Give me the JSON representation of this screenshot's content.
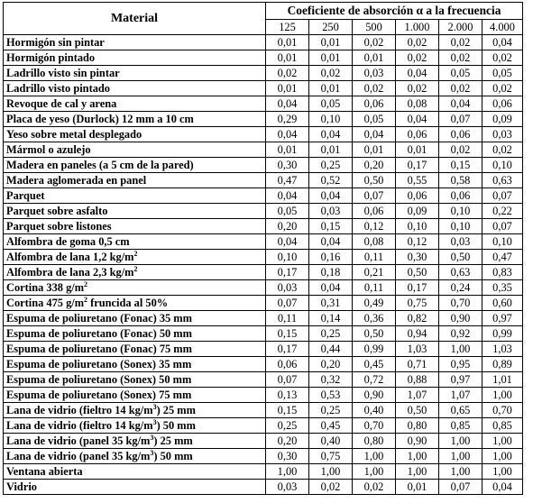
{
  "header": {
    "material_label": "Material",
    "coefficient_label": "Coeficiente de absorción  α  a la frecuencia",
    "frequencies": [
      "125",
      "250",
      "500",
      "1.000",
      "2.000",
      "4.000"
    ]
  },
  "rows": [
    {
      "name": "Hormigón sin pintar",
      "values": [
        "0,01",
        "0,01",
        "0,02",
        "0,02",
        "0,02",
        "0,04"
      ]
    },
    {
      "name": "Hormigón pintado",
      "values": [
        "0,01",
        "0,01",
        "0,01",
        "0,02",
        "0,02",
        "0,02"
      ]
    },
    {
      "name": "Ladrillo visto sin pintar",
      "values": [
        "0,02",
        "0,02",
        "0,03",
        "0,04",
        "0,05",
        "0,05"
      ]
    },
    {
      "name": "Ladrillo visto pintado",
      "values": [
        "0,01",
        "0,01",
        "0,02",
        "0,02",
        "0,02",
        "0,02"
      ]
    },
    {
      "name": "Revoque de cal y arena",
      "values": [
        "0,04",
        "0,05",
        "0,06",
        "0,08",
        "0,04",
        "0,06"
      ]
    },
    {
      "name": "Placa de yeso (Durlock) 12 mm a 10 cm",
      "values": [
        "0,29",
        "0,10",
        "0,05",
        "0,04",
        "0,07",
        "0,09"
      ]
    },
    {
      "name": "Yeso sobre metal desplegado",
      "values": [
        "0,04",
        "0,04",
        "0,04",
        "0,06",
        "0,06",
        "0,03"
      ]
    },
    {
      "name": "Mármol o azulejo",
      "values": [
        "0,01",
        "0,01",
        "0,01",
        "0,01",
        "0,02",
        "0,02"
      ]
    },
    {
      "name": "Madera en paneles (a 5 cm de la pared)",
      "values": [
        "0,30",
        "0,25",
        "0,20",
        "0,17",
        "0,15",
        "0,10"
      ]
    },
    {
      "name": "Madera aglomerada en panel",
      "values": [
        "0,47",
        "0,52",
        "0,50",
        "0,55",
        "0,58",
        "0,63"
      ]
    },
    {
      "name": "Parquet",
      "values": [
        "0,04",
        "0,04",
        "0,07",
        "0,06",
        "0,06",
        "0,07"
      ]
    },
    {
      "name": "Parquet sobre asfalto",
      "values": [
        "0,05",
        "0,03",
        "0,06",
        "0,09",
        "0,10",
        "0,22"
      ]
    },
    {
      "name": "Parquet sobre listones",
      "values": [
        "0,20",
        "0,15",
        "0,12",
        "0,10",
        "0,10",
        "0,07"
      ]
    },
    {
      "name": "Alfombra de goma 0,5 cm",
      "values": [
        "0,04",
        "0,04",
        "0,08",
        "0,12",
        "0,03",
        "0,10"
      ]
    },
    {
      "name": "Alfombra de lana 1,2 kg/m",
      "sup": "2",
      "values": [
        "0,10",
        "0,16",
        "0,11",
        "0,30",
        "0,50",
        "0,47"
      ]
    },
    {
      "name": "Alfombra de lana 2,3 kg/m",
      "sup": "2",
      "values": [
        "0,17",
        "0,18",
        "0,21",
        "0,50",
        "0,63",
        "0,83"
      ]
    },
    {
      "name": "Cortina 338 g/m",
      "sup": "2",
      "values": [
        "0,03",
        "0,04",
        "0,11",
        "0,17",
        "0,24",
        "0,35"
      ]
    },
    {
      "name": "Cortina 475 g/m",
      "sup": "2",
      "name_after": " fruncida al  50%",
      "values": [
        "0,07",
        "0,31",
        "0,49",
        "0,75",
        "0,70",
        "0,60"
      ]
    },
    {
      "name": "Espuma de poliuretano (Fonac) 35 mm",
      "values": [
        "0,11",
        "0,14",
        "0,36",
        "0,82",
        "0,90",
        "0,97"
      ]
    },
    {
      "name": "Espuma de poliuretano (Fonac) 50 mm",
      "values": [
        "0,15",
        "0,25",
        "0,50",
        "0,94",
        "0,92",
        "0,99"
      ]
    },
    {
      "name": "Espuma de poliuretano (Fonac) 75 mm",
      "values": [
        "0,17",
        "0,44",
        "0,99",
        "1,03",
        "1,00",
        "1,03"
      ]
    },
    {
      "name": "Espuma de poliuretano (Sonex) 35 mm",
      "values": [
        "0,06",
        "0,20",
        "0,45",
        "0,71",
        "0,95",
        "0,89"
      ]
    },
    {
      "name": "Espuma de poliuretano (Sonex) 50 mm",
      "values": [
        "0,07",
        "0,32",
        "0,72",
        "0,88",
        "0,97",
        "1,01"
      ]
    },
    {
      "name": "Espuma de poliuretano (Sonex) 75 mm",
      "values": [
        "0,13",
        "0,53",
        "0,90",
        "1,07",
        "1,07",
        "1,00"
      ]
    },
    {
      "name": "Lana de vidrio (fieltro 14 kg/m",
      "sup": "3",
      "name_after": ") 25 mm",
      "values": [
        "0,15",
        "0,25",
        "0,40",
        "0,50",
        "0,65",
        "0,70"
      ]
    },
    {
      "name": "Lana de vidrio (fieltro 14 kg/m",
      "sup": "3",
      "name_after": ") 50 mm",
      "values": [
        "0,25",
        "0,45",
        "0,70",
        "0,80",
        "0,85",
        "0,85"
      ]
    },
    {
      "name": "Lana de vidrio (panel 35 kg/m",
      "sup": "3",
      "name_after": ") 25 mm",
      "values": [
        "0,20",
        "0,40",
        "0,80",
        "0,90",
        "1,00",
        "1,00"
      ]
    },
    {
      "name": "Lana de vidrio (panel 35 kg/m",
      "sup": "3",
      "name_after": ") 50 mm",
      "values": [
        "0,30",
        "0,75",
        "1,00",
        "1,00",
        "1,00",
        "1,00"
      ]
    },
    {
      "name": "Ventana abierta",
      "values": [
        "1,00",
        "1,00",
        "1,00",
        "1,00",
        "1,00",
        "1,00"
      ]
    },
    {
      "name": "Vidrio",
      "values": [
        "0,03",
        "0,02",
        "0,02",
        "0,01",
        "0,07",
        "0,04"
      ]
    }
  ]
}
